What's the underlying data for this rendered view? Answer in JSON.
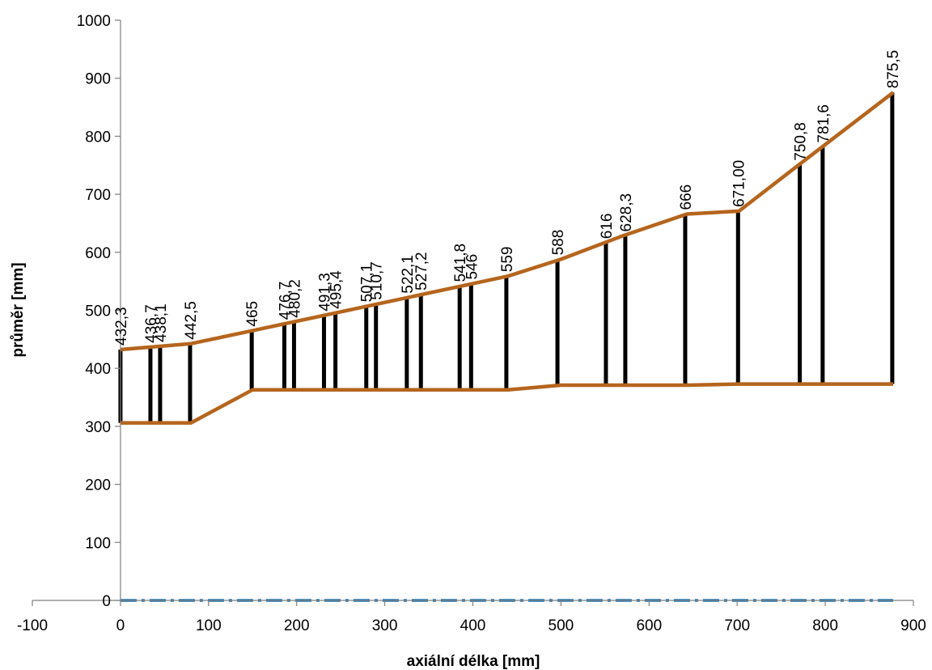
{
  "chart_data": {
    "type": "line",
    "title": "",
    "xlabel": "axiální délka [mm]",
    "ylabel": "průměr [mm]",
    "xlim": [
      -100,
      900
    ],
    "ylim": [
      0,
      1000
    ],
    "x_ticks": [
      -100,
      0,
      100,
      200,
      300,
      400,
      500,
      600,
      700,
      800,
      900
    ],
    "y_ticks": [
      0,
      100,
      200,
      300,
      400,
      500,
      600,
      700,
      800,
      900,
      1000
    ],
    "grid": false,
    "legend": "none",
    "colors": {
      "profile": "#b5651d",
      "stations": "#000000",
      "axis_line": "#1f77b4"
    },
    "outer_profile": [
      [
        0,
        432.3
      ],
      [
        80,
        442.5
      ],
      [
        150,
        465
      ],
      [
        440,
        559
      ],
      [
        500,
        588
      ],
      [
        570,
        628.3
      ],
      [
        643,
        666
      ],
      [
        702,
        671
      ],
      [
        770,
        750.8
      ],
      [
        877,
        875.5
      ]
    ],
    "inner_profile": [
      [
        0,
        306
      ],
      [
        80,
        306
      ],
      [
        150,
        363
      ],
      [
        440,
        363
      ],
      [
        500,
        371
      ],
      [
        643,
        371
      ],
      [
        702,
        373
      ],
      [
        877,
        373
      ]
    ],
    "axis_line": {
      "x": [
        0,
        877
      ],
      "y": 0
    },
    "stations": [
      {
        "x": 0,
        "y_inner": 306,
        "y_outer": 432.3,
        "label": "432,3"
      },
      {
        "x": 34,
        "y_inner": 306,
        "y_outer": 436.7,
        "label": "436,7"
      },
      {
        "x": 45,
        "y_inner": 306,
        "y_outer": 438.1,
        "label": "438,1"
      },
      {
        "x": 79,
        "y_inner": 306,
        "y_outer": 442.5,
        "label": "442,5"
      },
      {
        "x": 149,
        "y_inner": 363,
        "y_outer": 465,
        "label": "465"
      },
      {
        "x": 186,
        "y_inner": 363,
        "y_outer": 476.7,
        "label": "476,7"
      },
      {
        "x": 197,
        "y_inner": 363,
        "y_outer": 480.2,
        "label": "480,2"
      },
      {
        "x": 231,
        "y_inner": 363,
        "y_outer": 491.3,
        "label": "491,3"
      },
      {
        "x": 244,
        "y_inner": 363,
        "y_outer": 495.4,
        "label": "495,4"
      },
      {
        "x": 279,
        "y_inner": 363,
        "y_outer": 507.1,
        "label": "507,1"
      },
      {
        "x": 290,
        "y_inner": 363,
        "y_outer": 510.7,
        "label": "510,7"
      },
      {
        "x": 325,
        "y_inner": 363,
        "y_outer": 522.1,
        "label": "522,1"
      },
      {
        "x": 341,
        "y_inner": 363,
        "y_outer": 527.2,
        "label": "527,2"
      },
      {
        "x": 385,
        "y_inner": 363,
        "y_outer": 541.8,
        "label": "541,8"
      },
      {
        "x": 398,
        "y_inner": 363,
        "y_outer": 546,
        "label": "546"
      },
      {
        "x": 438,
        "y_inner": 363,
        "y_outer": 559,
        "label": "559"
      },
      {
        "x": 496,
        "y_inner": 371,
        "y_outer": 588,
        "label": "588"
      },
      {
        "x": 551,
        "y_inner": 371,
        "y_outer": 616,
        "label": "616"
      },
      {
        "x": 573,
        "y_inner": 371,
        "y_outer": 628.3,
        "label": "628,3"
      },
      {
        "x": 641,
        "y_inner": 371,
        "y_outer": 666,
        "label": "666"
      },
      {
        "x": 701,
        "y_inner": 373,
        "y_outer": 671,
        "label": "671,00"
      },
      {
        "x": 771,
        "y_inner": 373,
        "y_outer": 750.8,
        "label": "750,8"
      },
      {
        "x": 797,
        "y_inner": 373,
        "y_outer": 781.6,
        "label": "781,6"
      },
      {
        "x": 876,
        "y_inner": 373,
        "y_outer": 875.5,
        "label": "875,5"
      }
    ]
  }
}
